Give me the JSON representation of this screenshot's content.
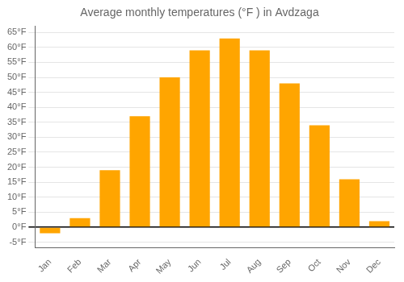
{
  "chart_data": {
    "type": "bar",
    "title": "Average monthly temperatures (°F ) in Avdzaga",
    "categories": [
      "Jan",
      "Feb",
      "Mar",
      "Apr",
      "May",
      "Jun",
      "Jul",
      "Aug",
      "Sep",
      "Oct",
      "Nov",
      "Dec"
    ],
    "values": [
      -2,
      3,
      19,
      37,
      50,
      59,
      63,
      59,
      48,
      34,
      16,
      2
    ],
    "color": "#FFA500",
    "ylim": [
      -7,
      67
    ],
    "yticks": [
      {
        "value": -5,
        "label": "-5°F"
      },
      {
        "value": 0,
        "label": "0°F"
      },
      {
        "value": 5,
        "label": "5°F"
      },
      {
        "value": 10,
        "label": "10°F"
      },
      {
        "value": 15,
        "label": "15°F"
      },
      {
        "value": 20,
        "label": "20°F"
      },
      {
        "value": 25,
        "label": "25°F"
      },
      {
        "value": 30,
        "label": "30°F"
      },
      {
        "value": 35,
        "label": "35°F"
      },
      {
        "value": 40,
        "label": "40°F"
      },
      {
        "value": 45,
        "label": "45°F"
      },
      {
        "value": 50,
        "label": "50°F"
      },
      {
        "value": 55,
        "label": "55°F"
      },
      {
        "value": 60,
        "label": "60°F"
      },
      {
        "value": 65,
        "label": "65°F"
      }
    ],
    "grid": true
  }
}
